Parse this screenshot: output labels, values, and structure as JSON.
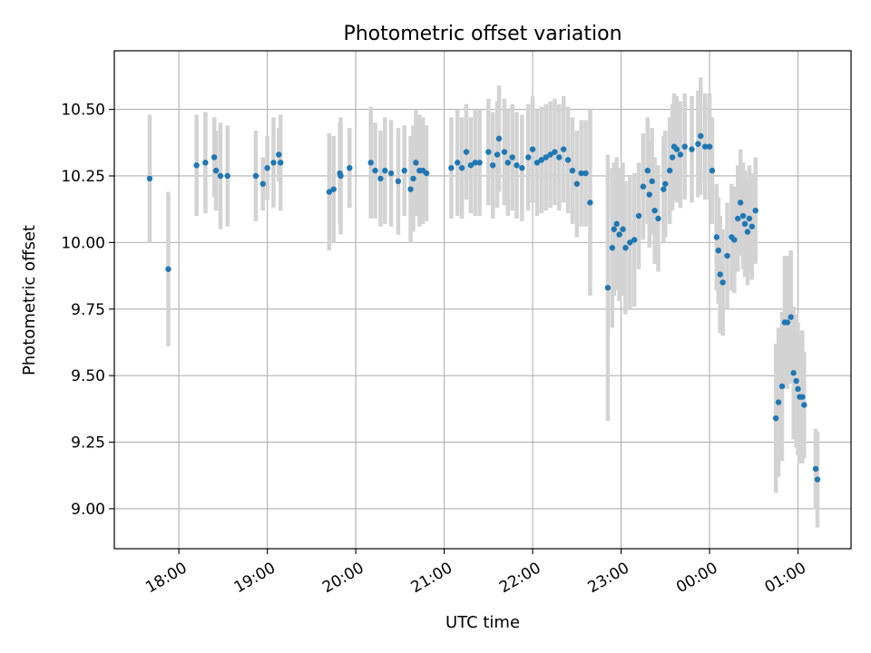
{
  "chart_data": {
    "type": "scatter",
    "title": "Photometric offset variation",
    "xlabel": "UTC time",
    "ylabel": "Photometric offset",
    "x_unit": "UTC hours",
    "xlim": [
      17.27,
      25.6
    ],
    "ylim": [
      8.85,
      10.72
    ],
    "grid": true,
    "marker_color": "#1f77b4",
    "errorbar_color": "#d3d3d3",
    "x_ticks": [
      {
        "value": 18,
        "label": "18:00"
      },
      {
        "value": 19,
        "label": "19:00"
      },
      {
        "value": 20,
        "label": "20:00"
      },
      {
        "value": 21,
        "label": "21:00"
      },
      {
        "value": 22,
        "label": "22:00"
      },
      {
        "value": 23,
        "label": "23:00"
      },
      {
        "value": 24,
        "label": "00:00"
      },
      {
        "value": 25,
        "label": "01:00"
      }
    ],
    "y_ticks": [
      {
        "value": 9.0,
        "label": "9.00"
      },
      {
        "value": 9.25,
        "label": "9.25"
      },
      {
        "value": 9.5,
        "label": "9.50"
      },
      {
        "value": 9.75,
        "label": "9.75"
      },
      {
        "value": 10.0,
        "label": "10.00"
      },
      {
        "value": 10.25,
        "label": "10.25"
      },
      {
        "value": 10.5,
        "label": "10.50"
      }
    ],
    "points": [
      [
        17.67,
        10.24,
        0.24
      ],
      [
        17.88,
        9.9,
        0.29
      ],
      [
        18.2,
        10.29,
        0.19
      ],
      [
        18.3,
        10.3,
        0.19
      ],
      [
        18.4,
        10.32,
        0.15
      ],
      [
        18.42,
        10.27,
        0.15
      ],
      [
        18.47,
        10.25,
        0.2
      ],
      [
        18.55,
        10.25,
        0.19
      ],
      [
        18.87,
        10.25,
        0.17
      ],
      [
        18.95,
        10.22,
        0.1
      ],
      [
        19.0,
        10.28,
        0.12
      ],
      [
        19.07,
        10.3,
        0.17
      ],
      [
        19.13,
        10.33,
        0.1
      ],
      [
        19.15,
        10.3,
        0.18
      ],
      [
        19.7,
        10.19,
        0.22
      ],
      [
        19.75,
        10.2,
        0.2
      ],
      [
        19.82,
        10.26,
        0.19
      ],
      [
        19.83,
        10.25,
        0.22
      ],
      [
        19.93,
        10.28,
        0.15
      ],
      [
        20.17,
        10.3,
        0.21
      ],
      [
        20.22,
        10.27,
        0.18
      ],
      [
        20.28,
        10.24,
        0.18
      ],
      [
        20.33,
        10.27,
        0.2
      ],
      [
        20.4,
        10.26,
        0.2
      ],
      [
        20.48,
        10.23,
        0.2
      ],
      [
        20.55,
        10.27,
        0.17
      ],
      [
        20.62,
        10.2,
        0.2
      ],
      [
        20.65,
        10.24,
        0.2
      ],
      [
        20.68,
        10.3,
        0.2
      ],
      [
        20.72,
        10.27,
        0.21
      ],
      [
        20.76,
        10.27,
        0.2
      ],
      [
        20.8,
        10.26,
        0.18
      ],
      [
        21.08,
        10.28,
        0.19
      ],
      [
        21.15,
        10.3,
        0.2
      ],
      [
        21.2,
        10.28,
        0.19
      ],
      [
        21.25,
        10.34,
        0.18
      ],
      [
        21.3,
        10.29,
        0.18
      ],
      [
        21.35,
        10.3,
        0.2
      ],
      [
        21.4,
        10.3,
        0.2
      ],
      [
        21.5,
        10.34,
        0.2
      ],
      [
        21.55,
        10.29,
        0.2
      ],
      [
        21.6,
        10.33,
        0.2
      ],
      [
        21.62,
        10.39,
        0.2
      ],
      [
        21.68,
        10.34,
        0.2
      ],
      [
        21.72,
        10.3,
        0.2
      ],
      [
        21.77,
        10.32,
        0.2
      ],
      [
        21.82,
        10.29,
        0.2
      ],
      [
        21.88,
        10.28,
        0.2
      ],
      [
        21.95,
        10.32,
        0.2
      ],
      [
        22.0,
        10.35,
        0.2
      ],
      [
        22.05,
        10.3,
        0.2
      ],
      [
        22.1,
        10.31,
        0.2
      ],
      [
        22.15,
        10.32,
        0.2
      ],
      [
        22.2,
        10.33,
        0.2
      ],
      [
        22.25,
        10.34,
        0.2
      ],
      [
        22.3,
        10.32,
        0.2
      ],
      [
        22.35,
        10.35,
        0.2
      ],
      [
        22.4,
        10.31,
        0.2
      ],
      [
        22.45,
        10.27,
        0.2
      ],
      [
        22.5,
        10.22,
        0.2
      ],
      [
        22.55,
        10.26,
        0.2
      ],
      [
        22.6,
        10.26,
        0.2
      ],
      [
        22.65,
        10.15,
        0.35
      ],
      [
        22.85,
        9.83,
        0.5
      ],
      [
        22.9,
        9.98,
        0.3
      ],
      [
        22.92,
        10.05,
        0.25
      ],
      [
        22.95,
        10.07,
        0.25
      ],
      [
        22.98,
        10.03,
        0.25
      ],
      [
        23.02,
        10.05,
        0.25
      ],
      [
        23.05,
        9.98,
        0.25
      ],
      [
        23.1,
        10.0,
        0.25
      ],
      [
        23.15,
        10.01,
        0.25
      ],
      [
        23.2,
        10.1,
        0.2
      ],
      [
        23.25,
        10.21,
        0.2
      ],
      [
        23.3,
        10.27,
        0.2
      ],
      [
        23.32,
        10.18,
        0.2
      ],
      [
        23.35,
        10.23,
        0.2
      ],
      [
        23.38,
        10.12,
        0.2
      ],
      [
        23.42,
        10.09,
        0.2
      ],
      [
        23.48,
        10.2,
        0.2
      ],
      [
        23.5,
        10.22,
        0.2
      ],
      [
        23.55,
        10.27,
        0.2
      ],
      [
        23.58,
        10.32,
        0.2
      ],
      [
        23.6,
        10.36,
        0.2
      ],
      [
        23.63,
        10.35,
        0.2
      ],
      [
        23.67,
        10.33,
        0.2
      ],
      [
        23.72,
        10.36,
        0.2
      ],
      [
        23.8,
        10.35,
        0.2
      ],
      [
        23.87,
        10.37,
        0.2
      ],
      [
        23.9,
        10.4,
        0.22
      ],
      [
        23.95,
        10.36,
        0.2
      ],
      [
        24.0,
        10.36,
        0.2
      ],
      [
        24.03,
        10.27,
        0.2
      ],
      [
        24.08,
        10.02,
        0.2
      ],
      [
        24.1,
        9.97,
        0.2
      ],
      [
        24.12,
        9.88,
        0.22
      ],
      [
        24.15,
        9.85,
        0.2
      ],
      [
        24.2,
        9.95,
        0.2
      ],
      [
        24.25,
        10.02,
        0.2
      ],
      [
        24.28,
        10.01,
        0.2
      ],
      [
        24.32,
        10.09,
        0.2
      ],
      [
        24.35,
        10.15,
        0.2
      ],
      [
        24.38,
        10.1,
        0.2
      ],
      [
        24.4,
        10.07,
        0.2
      ],
      [
        24.43,
        10.04,
        0.2
      ],
      [
        24.45,
        10.09,
        0.2
      ],
      [
        24.48,
        10.06,
        0.2
      ],
      [
        24.52,
        10.12,
        0.2
      ],
      [
        24.75,
        9.34,
        0.28
      ],
      [
        24.78,
        9.4,
        0.28
      ],
      [
        24.82,
        9.46,
        0.28
      ],
      [
        24.85,
        9.7,
        0.25
      ],
      [
        24.88,
        9.7,
        0.25
      ],
      [
        24.92,
        9.72,
        0.25
      ],
      [
        24.95,
        9.51,
        0.25
      ],
      [
        24.98,
        9.48,
        0.25
      ],
      [
        25.0,
        9.45,
        0.25
      ],
      [
        25.02,
        9.42,
        0.25
      ],
      [
        25.05,
        9.42,
        0.25
      ],
      [
        25.07,
        9.39,
        0.2
      ],
      [
        25.2,
        9.15,
        0.15
      ],
      [
        25.22,
        9.11,
        0.18
      ]
    ]
  }
}
